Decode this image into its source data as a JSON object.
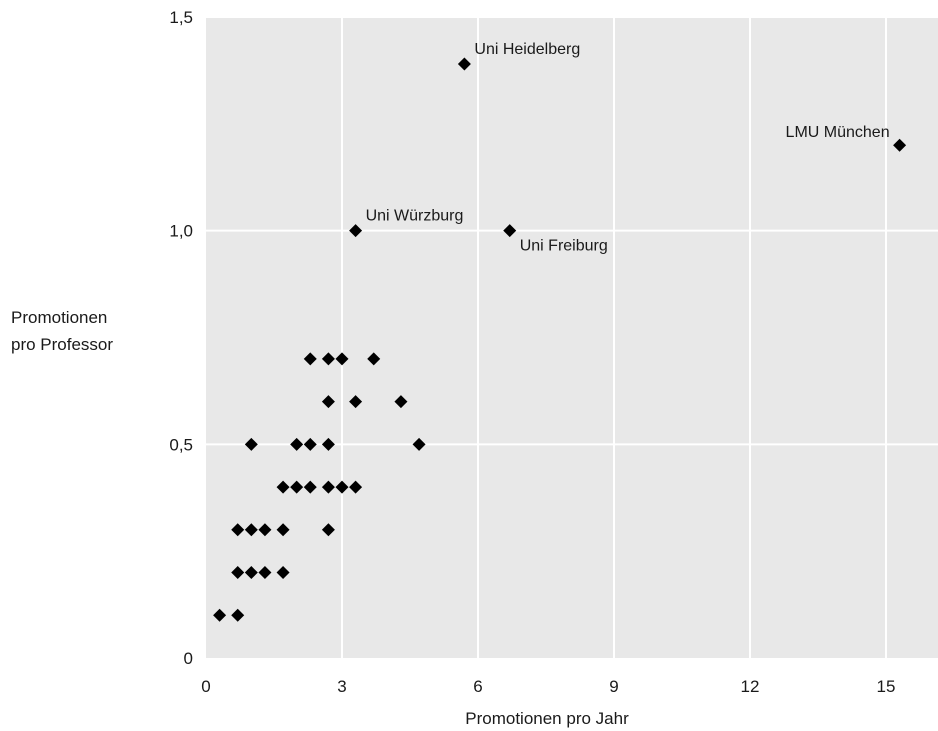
{
  "chart_data": {
    "type": "scatter",
    "title": "",
    "xlabel": "Promotionen pro Jahr",
    "ylabel_lines": [
      "Promotionen",
      "pro Professor"
    ],
    "xlim": [
      0,
      16
    ],
    "ylim": [
      0,
      1.5
    ],
    "x_ticks": [
      0,
      3,
      6,
      9,
      12,
      15
    ],
    "x_tick_labels": [
      "0",
      "3",
      "6",
      "9",
      "12",
      "15"
    ],
    "y_ticks": [
      0,
      0.5,
      1.0,
      1.5
    ],
    "y_tick_labels": [
      "0",
      "0,5",
      "1,0",
      "1,5"
    ],
    "grid": true,
    "marker": "diamond",
    "colors": {
      "plot_background": "#e8e8e8",
      "grid": "#ffffff",
      "marker": "#000000",
      "text": "#1a1a1a"
    },
    "points": [
      {
        "x": 0.3,
        "y": 0.1
      },
      {
        "x": 0.7,
        "y": 0.1
      },
      {
        "x": 0.7,
        "y": 0.2
      },
      {
        "x": 1.0,
        "y": 0.2
      },
      {
        "x": 1.3,
        "y": 0.2
      },
      {
        "x": 1.7,
        "y": 0.2
      },
      {
        "x": 0.7,
        "y": 0.3
      },
      {
        "x": 1.0,
        "y": 0.3
      },
      {
        "x": 1.3,
        "y": 0.3
      },
      {
        "x": 1.7,
        "y": 0.3
      },
      {
        "x": 2.7,
        "y": 0.3
      },
      {
        "x": 1.7,
        "y": 0.4
      },
      {
        "x": 2.0,
        "y": 0.4
      },
      {
        "x": 2.3,
        "y": 0.4
      },
      {
        "x": 2.7,
        "y": 0.4
      },
      {
        "x": 3.0,
        "y": 0.4
      },
      {
        "x": 3.3,
        "y": 0.4
      },
      {
        "x": 1.0,
        "y": 0.5
      },
      {
        "x": 2.0,
        "y": 0.5
      },
      {
        "x": 2.3,
        "y": 0.5
      },
      {
        "x": 2.7,
        "y": 0.5
      },
      {
        "x": 4.7,
        "y": 0.5
      },
      {
        "x": 2.7,
        "y": 0.6
      },
      {
        "x": 3.3,
        "y": 0.6
      },
      {
        "x": 4.3,
        "y": 0.6
      },
      {
        "x": 2.3,
        "y": 0.7
      },
      {
        "x": 2.7,
        "y": 0.7
      },
      {
        "x": 3.0,
        "y": 0.7
      },
      {
        "x": 3.7,
        "y": 0.7
      },
      {
        "x": 3.3,
        "y": 1.0,
        "label": "Uni Würzburg",
        "label_pos": "above-right"
      },
      {
        "x": 6.7,
        "y": 1.0,
        "label": "Uni Freiburg",
        "label_pos": "below-right"
      },
      {
        "x": 5.7,
        "y": 1.39,
        "label": "Uni Heidelberg",
        "label_pos": "above-right"
      },
      {
        "x": 15.3,
        "y": 1.2,
        "label": "LMU München",
        "label_pos": "above-left"
      }
    ]
  }
}
